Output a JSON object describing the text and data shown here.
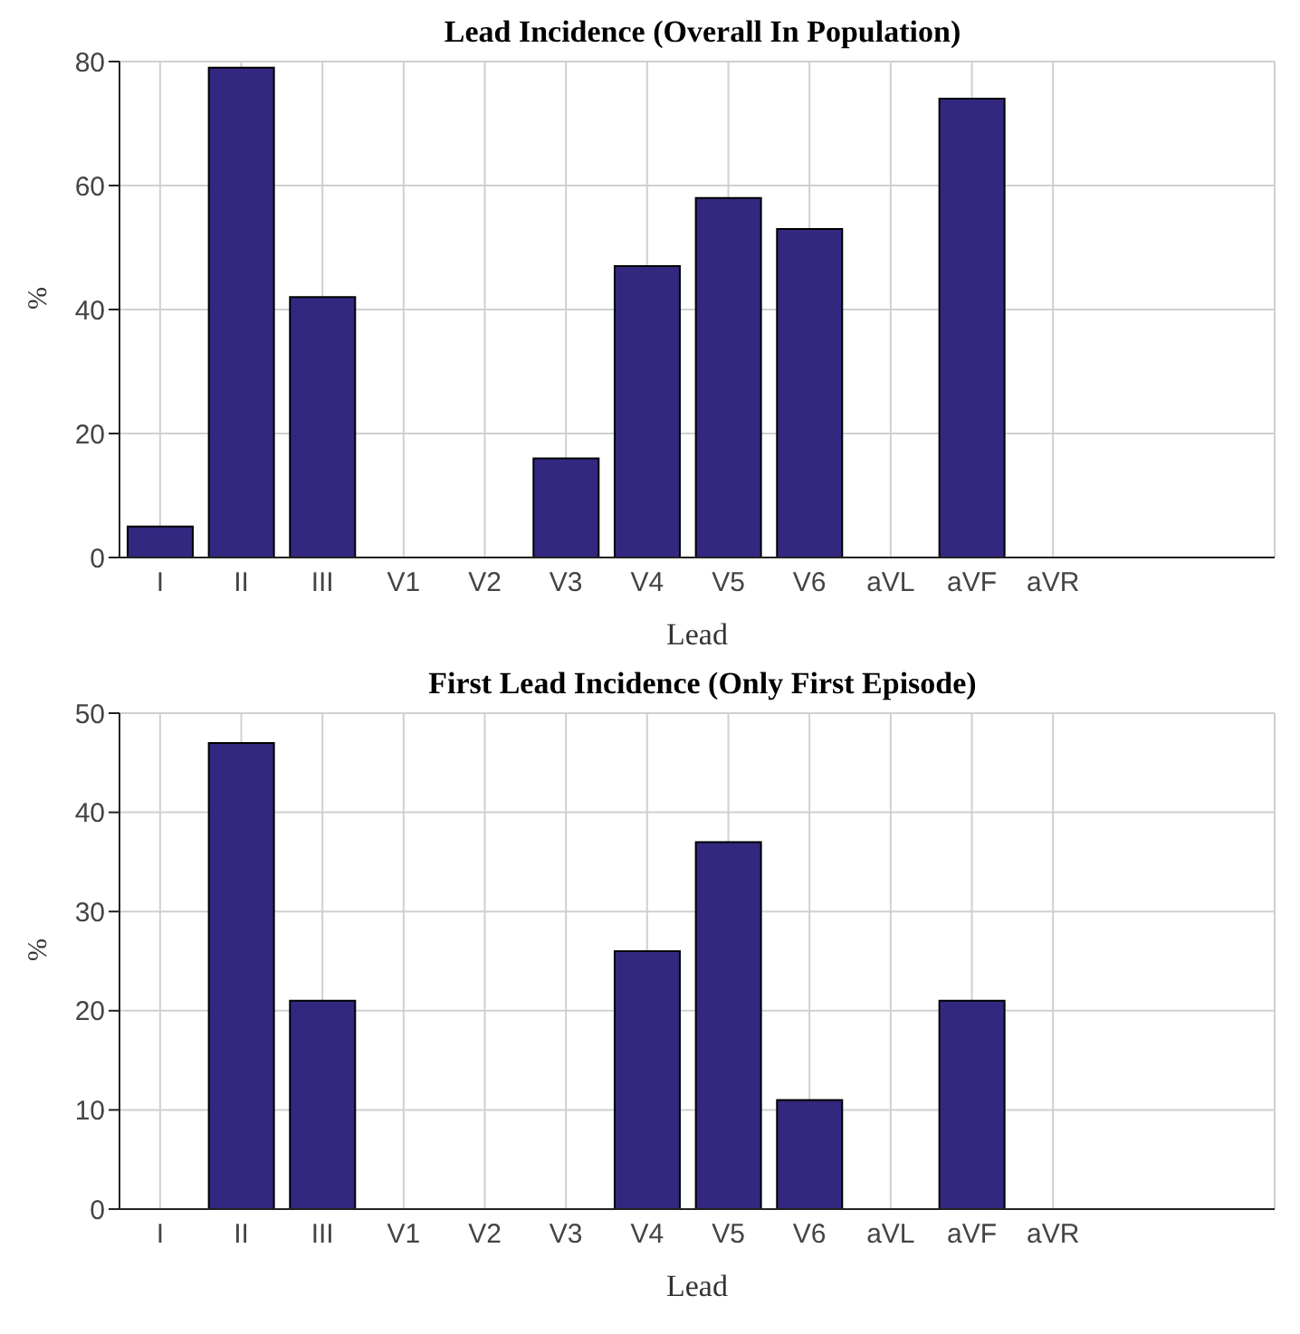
{
  "chart_data": [
    {
      "type": "bar",
      "title": "Lead Incidence (Overall In Population)",
      "xlabel": "Lead",
      "ylabel": "%",
      "categories": [
        "I",
        "II",
        "III",
        "V1",
        "V2",
        "V3",
        "V4",
        "V5",
        "V6",
        "aVL",
        "aVF",
        "aVR"
      ],
      "values": [
        5,
        79,
        42,
        0,
        0,
        16,
        47,
        58,
        53,
        0,
        74,
        0
      ],
      "color": "#332880",
      "ylim": [
        0,
        80
      ],
      "yticks": [
        0,
        20,
        40,
        60,
        80
      ],
      "grid": true
    },
    {
      "type": "bar",
      "title": "First Lead Incidence (Only First Episode)",
      "xlabel": "Lead",
      "ylabel": "%",
      "categories": [
        "I",
        "II",
        "III",
        "V1",
        "V2",
        "V3",
        "V4",
        "V5",
        "V6",
        "aVL",
        "aVF",
        "aVR"
      ],
      "values": [
        0,
        47,
        21,
        0,
        0,
        0,
        26,
        37,
        11,
        0,
        21,
        0
      ],
      "color": "#332880",
      "ylim": [
        0,
        50
      ],
      "yticks": [
        0,
        10,
        20,
        30,
        40,
        50
      ],
      "grid": true
    }
  ]
}
